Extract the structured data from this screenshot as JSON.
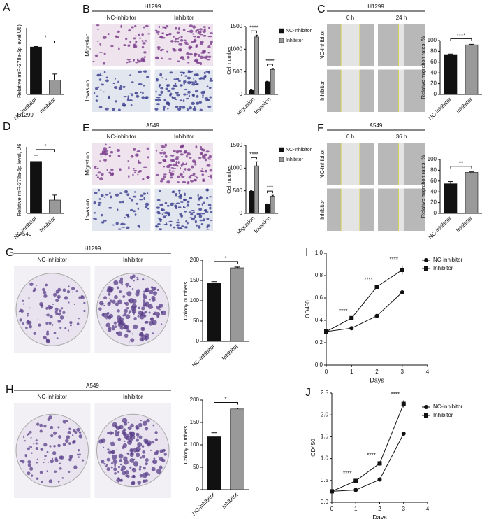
{
  "chart_data": [
    {
      "panel": "A",
      "type": "bar",
      "categories": [
        "NC-inhibitor",
        "Inhibitor"
      ],
      "values": [
        1.0,
        0.3
      ],
      "errors": [
        0.01,
        0.13
      ],
      "colors": [
        "#111111",
        "#999999"
      ],
      "ylim": [
        0,
        1.4
      ],
      "y_label": "Relative miR-378a-5p level(U6)",
      "significance": "*",
      "caption": "H1299"
    },
    {
      "panel": "B",
      "type": "bar",
      "image_title": "H1299",
      "image_columns": [
        "NC-inhibitor",
        "Inhibitor"
      ],
      "image_rows": [
        "Migration",
        "Invasion"
      ],
      "categories": [
        "Migration",
        "Invasion"
      ],
      "series": [
        {
          "name": "NC-inhibitor",
          "color": "#111111",
          "values": [
            100,
            280
          ],
          "errors": [
            15,
            10
          ]
        },
        {
          "name": "Inhibitor",
          "color": "#999999",
          "values": [
            1270,
            550
          ],
          "errors": [
            40,
            25
          ]
        }
      ],
      "ylim": [
        0,
        1500
      ],
      "yticks": [
        0,
        500,
        1000,
        1500
      ],
      "y_label": "Cell number",
      "significance": [
        "****",
        "****"
      ]
    },
    {
      "panel": "C",
      "type": "bar",
      "image_title": "H1299",
      "image_columns": [
        "0 h",
        "24 h"
      ],
      "image_rows": [
        "NC-inhibitor",
        "Inhibitor"
      ],
      "categories": [
        "NC-inhibitor",
        "Inhibitor"
      ],
      "values": [
        74,
        92
      ],
      "errors": [
        1,
        1
      ],
      "colors": [
        "#111111",
        "#999999"
      ],
      "ylim": [
        0,
        100
      ],
      "yticks": [
        0,
        20,
        40,
        60,
        80,
        100
      ],
      "y_label": "Relative migration rates, %",
      "significance": "****"
    },
    {
      "panel": "D",
      "type": "bar",
      "categories": [
        "NC-inhibitor",
        "Inhibitor"
      ],
      "values": [
        1.25,
        0.32
      ],
      "errors": [
        0.15,
        0.12
      ],
      "colors": [
        "#111111",
        "#999999"
      ],
      "ylim": [
        0,
        1.6
      ],
      "y_label": "Relative miR-378a-5p level, U6",
      "significance": "*",
      "caption": "A549"
    },
    {
      "panel": "E",
      "type": "bar",
      "image_title": "A549",
      "image_columns": [
        "NC-inhibitor",
        "Inhibitor"
      ],
      "image_rows": [
        "Migration",
        "Invasion"
      ],
      "categories": [
        "Migration",
        "Invasion"
      ],
      "series": [
        {
          "name": "NC-inhibitor",
          "color": "#111111",
          "values": [
            490,
            200
          ],
          "errors": [
            15,
            10
          ]
        },
        {
          "name": "Inhibitor",
          "color": "#999999",
          "values": [
            1050,
            380
          ],
          "errors": [
            90,
            20
          ]
        }
      ],
      "ylim": [
        0,
        1500
      ],
      "yticks": [
        0,
        500,
        1000,
        1500
      ],
      "y_label": "Cell number",
      "significance": [
        "****",
        "***"
      ]
    },
    {
      "panel": "F",
      "type": "bar",
      "image_title": "A549",
      "image_columns": [
        "0 h",
        "36 h"
      ],
      "image_rows": [
        "NC-inhibitor",
        "Inhibitor"
      ],
      "categories": [
        "NC-inhibitor",
        "Inhibitor"
      ],
      "values": [
        55,
        76
      ],
      "errors": [
        4,
        1
      ],
      "colors": [
        "#111111",
        "#999999"
      ],
      "ylim": [
        0,
        100
      ],
      "yticks": [
        0,
        20,
        40,
        60,
        80,
        100
      ],
      "y_label": "Relative migration rates, %",
      "significance": "**"
    },
    {
      "panel": "G",
      "type": "bar",
      "image_title": "H1299",
      "image_columns": [
        "NC-inhibitor",
        "Inhibitor"
      ],
      "categories": [
        "NC-inhibitor",
        "Inhibitor"
      ],
      "values": [
        143,
        181
      ],
      "errors": [
        4,
        2
      ],
      "colors": [
        "#111111",
        "#999999"
      ],
      "ylim": [
        0,
        200
      ],
      "yticks": [
        0,
        50,
        100,
        150,
        200
      ],
      "y_label": "Colony numbers",
      "significance": "*"
    },
    {
      "panel": "I",
      "type": "line",
      "x": [
        0,
        1,
        2,
        3
      ],
      "series": [
        {
          "name": "NC-inhibitor",
          "color": "#111111",
          "marker": "circle",
          "values": [
            0.3,
            0.33,
            0.44,
            0.65
          ],
          "errors": [
            0.01,
            0.01,
            0.01,
            0.01
          ]
        },
        {
          "name": "Inhibitor",
          "color": "#111111",
          "marker": "square",
          "values": [
            0.3,
            0.42,
            0.7,
            0.85
          ],
          "errors": [
            0.01,
            0.01,
            0.01,
            0.04
          ]
        }
      ],
      "xlim": [
        0,
        4
      ],
      "xticks": [
        0,
        1,
        2,
        3,
        4
      ],
      "ylim": [
        0,
        1
      ],
      "yticks": [
        {
          "value": 0,
          "label": "0.0"
        },
        0.2,
        0.4,
        0.6,
        0.8,
        {
          "value": 1,
          "label": "1.0"
        }
      ],
      "x_label": "Days",
      "y_label": "OD450",
      "annotations": [
        null,
        "****",
        "****",
        "****"
      ]
    },
    {
      "panel": "H",
      "type": "bar",
      "image_title": "A549",
      "image_columns": [
        "NC-inhibitor",
        "Inhibitor"
      ],
      "categories": [
        "NC-inhibitor",
        "Inhibitor"
      ],
      "values": [
        118,
        180
      ],
      "errors": [
        9,
        2
      ],
      "colors": [
        "#111111",
        "#999999"
      ],
      "ylim": [
        0,
        200
      ],
      "yticks": [
        0,
        50,
        100,
        150,
        200
      ],
      "y_label": "Colony numbers",
      "significance": "*"
    },
    {
      "panel": "J",
      "type": "line",
      "x": [
        0,
        1,
        2,
        3
      ],
      "series": [
        {
          "name": "NC-inhibitor",
          "color": "#111111",
          "marker": "circle",
          "values": [
            0.25,
            0.28,
            0.52,
            1.57
          ],
          "errors": [
            0.01,
            0.01,
            0.04,
            0.01
          ]
        },
        {
          "name": "Inhibitor",
          "color": "#111111",
          "marker": "square",
          "values": [
            0.25,
            0.49,
            0.89,
            2.25
          ],
          "errors": [
            0.01,
            0.03,
            0.05,
            0.08
          ]
        }
      ],
      "xlim": [
        0,
        4
      ],
      "xticks": [
        0,
        1,
        2,
        3,
        4
      ],
      "ylim": [
        0,
        2.5
      ],
      "yticks": [
        {
          "value": 0,
          "label": "0.0"
        },
        0.5,
        {
          "value": 1,
          "label": "1.0"
        },
        1.5,
        {
          "value": 2,
          "label": "2.0"
        },
        2.5
      ],
      "x_label": "Days",
      "y_label": "OD450",
      "annotations": [
        null,
        "****",
        "****",
        "****"
      ]
    }
  ]
}
